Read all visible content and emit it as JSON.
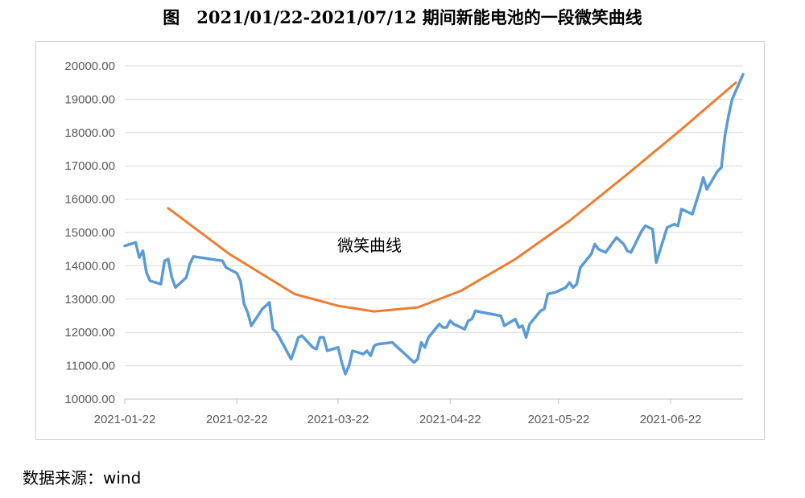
{
  "title": "图　2021/01/22-2021/07/12 期间新能电池的一段微笑曲线",
  "source": "数据来源：wind",
  "chart_data": {
    "type": "line",
    "title": "图　2021/01/22-2021/07/12 期间新能电池的一段微笑曲线",
    "ylim": [
      10000,
      20000
    ],
    "yticks": [
      "10000.00",
      "11000.00",
      "12000.00",
      "13000.00",
      "14000.00",
      "15000.00",
      "16000.00",
      "17000.00",
      "18000.00",
      "19000.00",
      "20000.00"
    ],
    "xlim": [
      "2021-01-22",
      "2021-07-12"
    ],
    "xticks": [
      "2021-01-22",
      "2021-02-22",
      "2021-03-22",
      "2021-04-22",
      "2021-05-22",
      "2021-06-22"
    ],
    "grid": "horizontal",
    "annotation": "微笑曲线",
    "series": [
      {
        "color": "#5b9bd5",
        "points": [
          [
            "2021-01-22",
            14600
          ],
          [
            "2021-01-25",
            14700
          ],
          [
            "2021-01-26",
            14250
          ],
          [
            "2021-01-27",
            14450
          ],
          [
            "2021-01-28",
            13800
          ],
          [
            "2021-01-29",
            13550
          ],
          [
            "2021-02-01",
            13450
          ],
          [
            "2021-02-02",
            14150
          ],
          [
            "2021-02-03",
            14200
          ],
          [
            "2021-02-04",
            13650
          ],
          [
            "2021-02-05",
            13350
          ],
          [
            "2021-02-08",
            13650
          ],
          [
            "2021-02-09",
            14050
          ],
          [
            "2021-02-10",
            14280
          ],
          [
            "2021-02-18",
            14150
          ],
          [
            "2021-02-19",
            13950
          ],
          [
            "2021-02-22",
            13780
          ],
          [
            "2021-02-23",
            13550
          ],
          [
            "2021-02-24",
            12850
          ],
          [
            "2021-02-25",
            12600
          ],
          [
            "2021-02-26",
            12200
          ],
          [
            "2021-03-01",
            12700
          ],
          [
            "2021-03-02",
            12800
          ],
          [
            "2021-03-03",
            12900
          ],
          [
            "2021-03-04",
            12100
          ],
          [
            "2021-03-05",
            12000
          ],
          [
            "2021-03-08",
            11400
          ],
          [
            "2021-03-09",
            11200
          ],
          [
            "2021-03-10",
            11500
          ],
          [
            "2021-03-11",
            11850
          ],
          [
            "2021-03-12",
            11900
          ],
          [
            "2021-03-15",
            11550
          ],
          [
            "2021-03-16",
            11500
          ],
          [
            "2021-03-17",
            11850
          ],
          [
            "2021-03-18",
            11850
          ],
          [
            "2021-03-19",
            11450
          ],
          [
            "2021-03-22",
            11550
          ],
          [
            "2021-03-23",
            11100
          ],
          [
            "2021-03-24",
            10750
          ],
          [
            "2021-03-25",
            11000
          ],
          [
            "2021-03-26",
            11450
          ],
          [
            "2021-03-29",
            11350
          ],
          [
            "2021-03-30",
            11450
          ],
          [
            "2021-03-31",
            11300
          ],
          [
            "2021-04-01",
            11600
          ],
          [
            "2021-04-02",
            11650
          ],
          [
            "2021-04-06",
            11700
          ],
          [
            "2021-04-07",
            11600
          ],
          [
            "2021-04-08",
            11500
          ],
          [
            "2021-04-09",
            11400
          ],
          [
            "2021-04-12",
            11100
          ],
          [
            "2021-04-13",
            11200
          ],
          [
            "2021-04-14",
            11700
          ],
          [
            "2021-04-15",
            11550
          ],
          [
            "2021-04-16",
            11850
          ],
          [
            "2021-04-19",
            12250
          ],
          [
            "2021-04-20",
            12150
          ],
          [
            "2021-04-21",
            12150
          ],
          [
            "2021-04-22",
            12350
          ],
          [
            "2021-04-23",
            12250
          ],
          [
            "2021-04-26",
            12100
          ],
          [
            "2021-04-27",
            12350
          ],
          [
            "2021-04-28",
            12400
          ],
          [
            "2021-04-29",
            12650
          ],
          [
            "2021-04-30",
            12620
          ],
          [
            "2021-05-06",
            12500
          ],
          [
            "2021-05-07",
            12200
          ],
          [
            "2021-05-10",
            12400
          ],
          [
            "2021-05-11",
            12150
          ],
          [
            "2021-05-12",
            12200
          ],
          [
            "2021-05-13",
            11850
          ],
          [
            "2021-05-14",
            12250
          ],
          [
            "2021-05-17",
            12650
          ],
          [
            "2021-05-18",
            12700
          ],
          [
            "2021-05-19",
            13150
          ],
          [
            "2021-05-20",
            13180
          ],
          [
            "2021-05-21",
            13200
          ],
          [
            "2021-05-24",
            13350
          ],
          [
            "2021-05-25",
            13500
          ],
          [
            "2021-05-26",
            13350
          ],
          [
            "2021-05-27",
            13450
          ],
          [
            "2021-05-28",
            13950
          ],
          [
            "2021-05-31",
            14350
          ],
          [
            "2021-06-01",
            14650
          ],
          [
            "2021-06-02",
            14500
          ],
          [
            "2021-06-03",
            14450
          ],
          [
            "2021-06-04",
            14400
          ],
          [
            "2021-06-07",
            14850
          ],
          [
            "2021-06-08",
            14750
          ],
          [
            "2021-06-09",
            14650
          ],
          [
            "2021-06-10",
            14450
          ],
          [
            "2021-06-11",
            14400
          ],
          [
            "2021-06-14",
            15050
          ],
          [
            "2021-06-15",
            15200
          ],
          [
            "2021-06-16",
            15150
          ],
          [
            "2021-06-17",
            15100
          ],
          [
            "2021-06-18",
            14100
          ],
          [
            "2021-06-21",
            15150
          ],
          [
            "2021-06-22",
            15200
          ],
          [
            "2021-06-23",
            15250
          ],
          [
            "2021-06-24",
            15200
          ],
          [
            "2021-06-25",
            15700
          ],
          [
            "2021-06-28",
            15550
          ],
          [
            "2021-06-29",
            15900
          ],
          [
            "2021-06-30",
            16250
          ],
          [
            "2021-07-01",
            16650
          ],
          [
            "2021-07-02",
            16300
          ],
          [
            "2021-07-05",
            16850
          ],
          [
            "2021-07-06",
            16950
          ],
          [
            "2021-07-07",
            17900
          ],
          [
            "2021-07-08",
            18500
          ],
          [
            "2021-07-09",
            19000
          ],
          [
            "2021-07-12",
            19750
          ]
        ]
      },
      {
        "color": "#ed7d31",
        "points": [
          [
            "2021-02-03",
            15730
          ],
          [
            "2021-02-20",
            14350
          ],
          [
            "2021-03-10",
            13150
          ],
          [
            "2021-03-22",
            12800
          ],
          [
            "2021-04-01",
            12630
          ],
          [
            "2021-04-13",
            12750
          ],
          [
            "2021-04-25",
            13250
          ],
          [
            "2021-05-10",
            14200
          ],
          [
            "2021-05-25",
            15350
          ],
          [
            "2021-06-10",
            16750
          ],
          [
            "2021-06-25",
            18100
          ],
          [
            "2021-07-10",
            19500
          ]
        ]
      }
    ]
  }
}
